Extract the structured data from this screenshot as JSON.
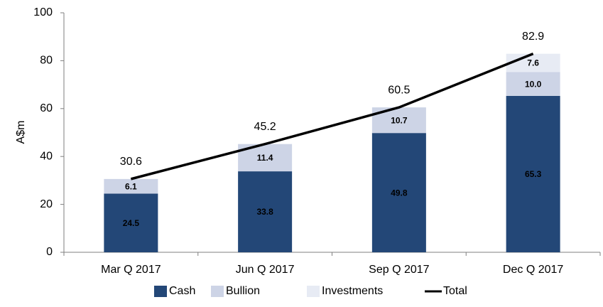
{
  "chart_data": {
    "type": "bar",
    "stacked": true,
    "y_label": "A$m",
    "categories": [
      "Mar Q 2017",
      "Jun Q 2017",
      "Sep Q 2017",
      "Dec Q 2017"
    ],
    "series": [
      {
        "name": "Cash",
        "color": "#234777",
        "values": [
          24.5,
          33.8,
          49.8,
          65.3
        ]
      },
      {
        "name": "Bullion",
        "color": "#cdd4e6",
        "values": [
          6.1,
          11.4,
          10.7,
          {
            "value": 10.0,
            "label": "10.0"
          }
        ]
      },
      {
        "name": "Investments",
        "color": "#e7ebf4",
        "values": [
          0,
          0,
          0,
          7.6
        ]
      },
      {
        "name": "Total",
        "color": "#000000",
        "type": "line",
        "values": [
          30.6,
          45.2,
          60.5,
          82.9
        ]
      }
    ],
    "ylim": [
      0,
      100
    ],
    "yticks": [
      0,
      20,
      40,
      60,
      80,
      100
    ],
    "legend": "bottom"
  }
}
